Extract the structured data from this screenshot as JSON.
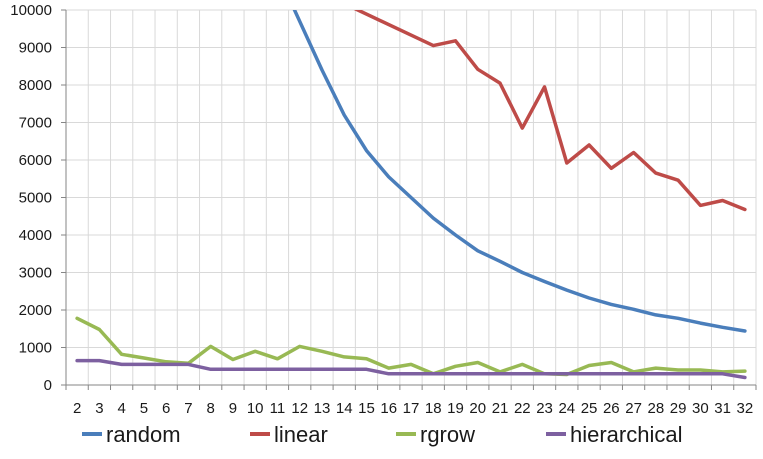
{
  "chart_data": {
    "type": "line",
    "title": "",
    "xlabel": "",
    "ylabel": "",
    "x": [
      2,
      3,
      4,
      5,
      6,
      7,
      8,
      9,
      10,
      11,
      12,
      13,
      14,
      15,
      16,
      17,
      18,
      19,
      20,
      21,
      22,
      23,
      24,
      25,
      26,
      27,
      28,
      29,
      30,
      31,
      32
    ],
    "ylim": [
      0,
      10000
    ],
    "yticks": [
      0,
      1000,
      2000,
      3000,
      4000,
      5000,
      6000,
      7000,
      8000,
      9000,
      10000
    ],
    "grid": "vertical and horizontal",
    "legend_position": "bottom",
    "colors": {
      "random": "#4a7ebb",
      "linear": "#be4b48",
      "rgrow": "#98b954",
      "hierarchical": "#7d60a0",
      "grid": "#d9d9d9",
      "axis": "#868686"
    },
    "series": [
      {
        "name": "random",
        "values": [
          null,
          null,
          null,
          null,
          null,
          null,
          null,
          null,
          null,
          null,
          9700,
          8400,
          7200,
          6250,
          5550,
          5000,
          4450,
          4000,
          3580,
          3300,
          3000,
          2760,
          2530,
          2320,
          2150,
          2020,
          1870,
          1780,
          1650,
          1540,
          1440
        ]
      },
      {
        "name": "linear",
        "values": [
          null,
          null,
          null,
          null,
          null,
          null,
          null,
          null,
          null,
          null,
          null,
          null,
          null,
          null,
          null,
          9330,
          9050,
          9180,
          8420,
          8050,
          6850,
          7950,
          5920,
          6400,
          5780,
          6200,
          5650,
          5460,
          4790,
          4920,
          4680
        ]
      },
      {
        "name": "rgrow",
        "values": [
          1780,
          1480,
          820,
          720,
          620,
          580,
          1030,
          680,
          900,
          700,
          1030,
          900,
          750,
          700,
          450,
          550,
          300,
          500,
          600,
          350,
          550,
          300,
          280,
          520,
          600,
          350,
          450,
          400,
          400,
          350,
          370
        ]
      },
      {
        "name": "hierarchical",
        "values": [
          650,
          650,
          550,
          550,
          550,
          550,
          420,
          420,
          420,
          420,
          420,
          420,
          420,
          420,
          300,
          300,
          300,
          300,
          300,
          300,
          300,
          300,
          300,
          300,
          300,
          300,
          300,
          300,
          300,
          300,
          200
        ]
      }
    ]
  }
}
